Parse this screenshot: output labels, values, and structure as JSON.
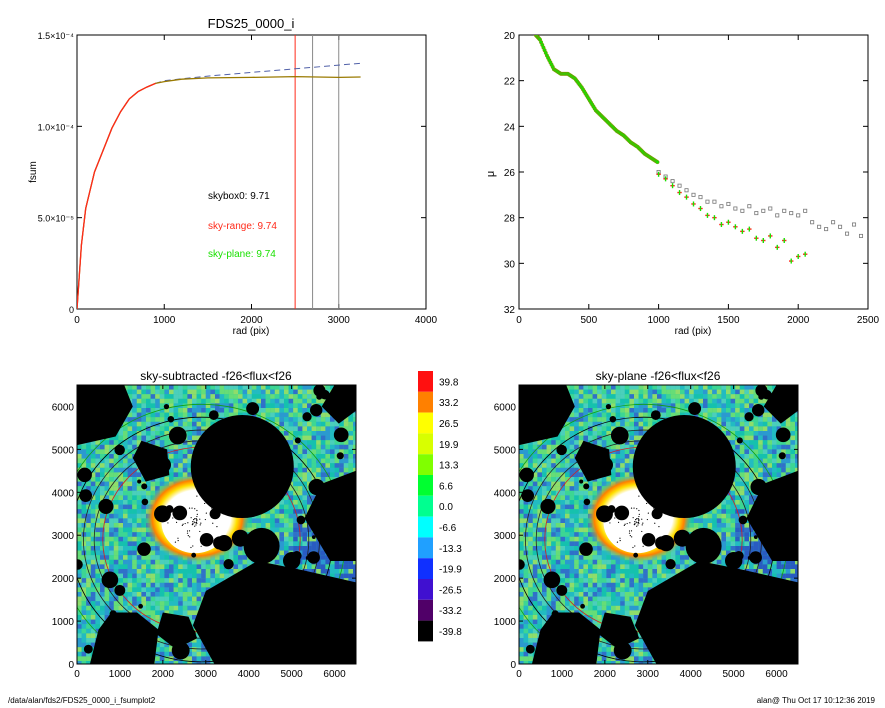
{
  "colors": {
    "sky_range": "#ff2a1a",
    "sky_plane": "#19e000",
    "skybox": "#000000",
    "dashed_model": "#5060a8",
    "grey_line": "#8a8a8a",
    "brown_curve": "#9a7a00"
  },
  "footer": {
    "left": "/data/alan/fds2/FDS25_0000_i_fsumplot2",
    "right": "alan@  Thu Oct 17 10:12:36 2019"
  },
  "chart_data": [
    {
      "type": "line",
      "title": "FDS25_0000_i",
      "xlabel": "rad (pix)",
      "ylabel": "fsum",
      "xlim": [
        0,
        4000
      ],
      "ylim": [
        0,
        0.00015
      ],
      "xticks": [
        0,
        1000,
        2000,
        3000,
        4000
      ],
      "yticks": [
        {
          "value": 0,
          "label": "0"
        },
        {
          "value": 5e-05,
          "label": "5.0×10⁻⁵"
        },
        {
          "value": 0.0001,
          "label": "1.0×10⁻⁴"
        },
        {
          "value": 0.00015,
          "label": "1.5×10⁻⁴"
        }
      ],
      "vlines": [
        {
          "x": 2500,
          "color": "red"
        },
        {
          "x": 2700,
          "color": "grey"
        },
        {
          "x": 3000,
          "color": "grey"
        }
      ],
      "annotations": [
        {
          "text": "skybox0:  9.71",
          "color": "black"
        },
        {
          "text": "sky-range:  9.74",
          "color": "red"
        },
        {
          "text": "sky-plane:  9.74",
          "color": "green"
        }
      ],
      "series": [
        {
          "style": "dashed",
          "x": [
            0,
            50,
            100,
            200,
            300,
            400,
            500,
            600,
            700,
            800,
            900,
            1000,
            1200,
            1500,
            2000,
            2500,
            3000,
            3250
          ],
          "y": [
            0,
            3.5e-05,
            5.5e-05,
            7.5e-05,
            8.7e-05,
            9.9e-05,
            0.000108,
            0.000115,
            0.000119,
            0.0001215,
            0.0001235,
            0.000125,
            0.000126,
            0.0001275,
            0.0001295,
            0.0001315,
            0.0001335,
            0.0001345
          ]
        },
        {
          "style": "solid",
          "x": [
            0,
            50,
            100,
            200,
            300,
            400,
            500,
            600,
            700,
            800,
            900,
            1000,
            1200,
            1500,
            2000,
            2500,
            3000,
            3250
          ],
          "y": [
            0,
            3.5e-05,
            5.5e-05,
            7.5e-05,
            8.7e-05,
            9.9e-05,
            0.000108,
            0.000115,
            0.000119,
            0.0001215,
            0.0001235,
            0.0001245,
            0.0001258,
            0.0001265,
            0.0001268,
            0.0001272,
            0.0001268,
            0.000127
          ]
        }
      ]
    },
    {
      "type": "scatter",
      "xlabel": "rad (pix)",
      "ylabel": "μ",
      "xlim": [
        0,
        2500
      ],
      "ylim": [
        32,
        20
      ],
      "xticks": [
        0,
        500,
        1000,
        1500,
        2000,
        2500
      ],
      "yticks": [
        20,
        22,
        24,
        26,
        28,
        30,
        32
      ],
      "series": [
        {
          "name": "skybox0",
          "marker": "square",
          "x": [
            1000,
            1050,
            1100,
            1150,
            1200,
            1250,
            1300,
            1350,
            1400,
            1450,
            1500,
            1550,
            1600,
            1650,
            1700,
            1750,
            1800,
            1850,
            1900,
            1950,
            2000,
            2050,
            2100,
            2150,
            2200,
            2250,
            2300,
            2350,
            2400,
            2450
          ],
          "y": [
            26.0,
            26.2,
            26.4,
            26.6,
            26.8,
            27.0,
            27.1,
            27.3,
            27.3,
            27.5,
            27.4,
            27.6,
            27.7,
            27.5,
            27.8,
            27.7,
            27.6,
            27.9,
            27.7,
            27.8,
            27.9,
            27.7,
            28.2,
            28.4,
            28.5,
            28.2,
            28.4,
            28.7,
            28.3,
            28.8
          ]
        },
        {
          "name": "sky-range",
          "marker": "plus",
          "x": [
            1000,
            1050,
            1100,
            1150,
            1200,
            1250,
            1300,
            1350,
            1400,
            1450,
            1500,
            1550,
            1600,
            1650,
            1700,
            1750,
            1800,
            1850,
            1900,
            1950,
            2000,
            2050
          ],
          "y": [
            26.1,
            26.3,
            26.6,
            26.9,
            27.1,
            27.4,
            27.6,
            27.9,
            28.0,
            28.3,
            28.2,
            28.4,
            28.6,
            28.5,
            28.9,
            29.0,
            28.8,
            29.3,
            29.0,
            29.9,
            29.7,
            29.6
          ]
        }
      ],
      "curve": {
        "x": [
          120,
          150,
          200,
          250,
          300,
          350,
          400,
          450,
          500,
          550,
          600,
          650,
          700,
          750,
          800,
          850,
          900,
          950,
          1000
        ],
        "y": [
          20.0,
          20.2,
          20.9,
          21.5,
          21.7,
          21.7,
          21.9,
          22.3,
          22.8,
          23.3,
          23.6,
          23.9,
          24.2,
          24.4,
          24.7,
          24.9,
          25.2,
          25.4,
          25.6
        ]
      }
    },
    {
      "type": "heatmap",
      "title": "sky-subtracted -f26<flux<f26",
      "xlim": [
        0,
        6500
      ],
      "ylim": [
        0,
        6500
      ],
      "xticks": [
        0,
        1000,
        2000,
        3000,
        4000,
        5000,
        6000
      ],
      "yticks": [
        0,
        1000,
        2000,
        3000,
        4000,
        5000,
        6000
      ]
    },
    {
      "type": "heatmap",
      "title": "sky-plane -f26<flux<f26",
      "xlim": [
        0,
        6500
      ],
      "ylim": [
        0,
        6500
      ],
      "xticks": [
        0,
        1000,
        2000,
        3000,
        4000,
        5000,
        6000
      ],
      "yticks": [
        0,
        1000,
        2000,
        3000,
        4000,
        5000,
        6000
      ]
    },
    {
      "type": "colorbar",
      "levels": [
        {
          "label": "39.8",
          "color": "#ff1010"
        },
        {
          "label": "33.2",
          "color": "#ff8000"
        },
        {
          "label": "26.5",
          "color": "#ffff00"
        },
        {
          "label": "19.9",
          "color": "#d8ff00"
        },
        {
          "label": "13.3",
          "color": "#80ff00"
        },
        {
          "label": "6.6",
          "color": "#00ff30"
        },
        {
          "label": "0.0",
          "color": "#00ff90"
        },
        {
          "label": "-6.6",
          "color": "#00ffff"
        },
        {
          "label": "-13.3",
          "color": "#20a0ff"
        },
        {
          "label": "-19.9",
          "color": "#1030ff"
        },
        {
          "label": "-26.5",
          "color": "#4010d0"
        },
        {
          "label": "-33.2",
          "color": "#500068"
        },
        {
          "label": "-39.8",
          "color": "#000000"
        }
      ]
    }
  ]
}
